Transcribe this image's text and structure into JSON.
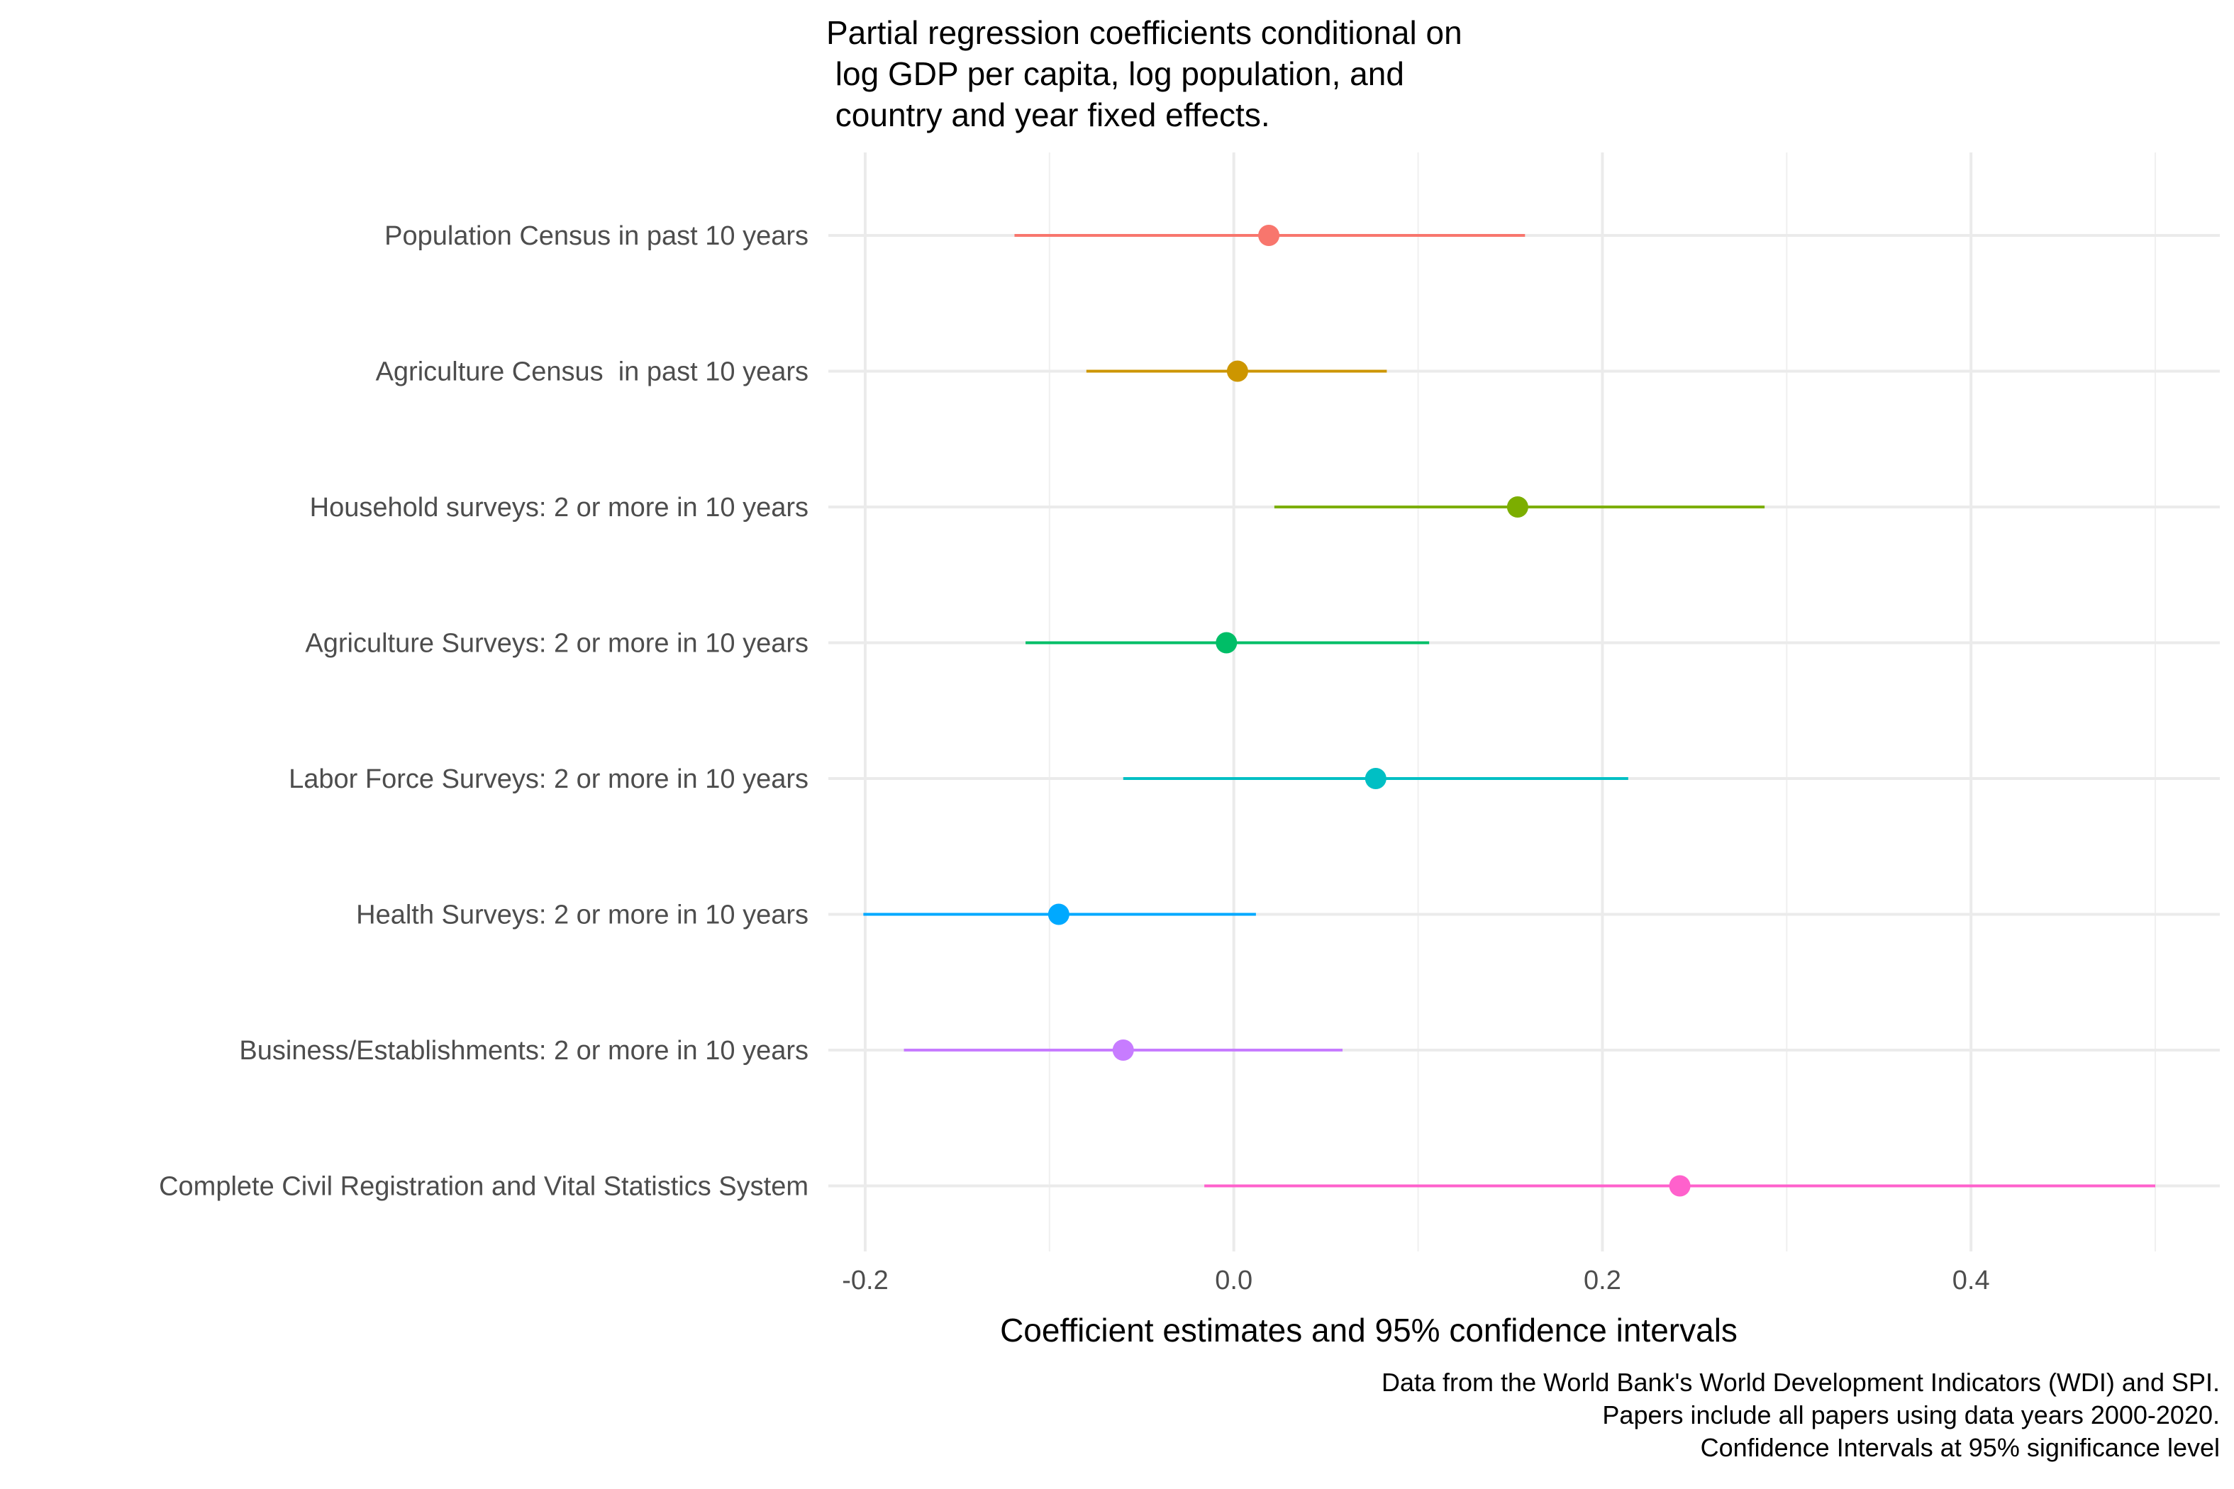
{
  "chart_data": {
    "type": "scatter",
    "subtype": "coefficient-plot",
    "title": [
      "Partial regression coefficients conditional on",
      " log GDP per capita, log population, and",
      " country and year fixed effects."
    ],
    "xlabel": "Coefficient estimates and 95% confidence intervals",
    "ylabel": "",
    "xlim": [
      -0.22,
      0.535
    ],
    "xticks": [
      -0.2,
      0.0,
      0.2,
      0.4
    ],
    "xtick_labels": [
      "-0.2",
      "0.0",
      "0.2",
      "0.4"
    ],
    "grid": true,
    "legend": "none",
    "caption": [
      "Data from the World Bank's World Development Indicators (WDI) and SPI.",
      "Papers include all papers using data years 2000-2020.",
      "Confidence Intervals at 95% significance level"
    ],
    "series": [
      {
        "label": "Population Census in past 10 years",
        "estimate": 0.019,
        "ci_low": -0.119,
        "ci_high": 0.158,
        "color": "#F8766D"
      },
      {
        "label": "Agriculture Census  in past 10 years",
        "estimate": 0.002,
        "ci_low": -0.08,
        "ci_high": 0.083,
        "color": "#CD9600"
      },
      {
        "label": "Household surveys: 2 or more in 10 years",
        "estimate": 0.154,
        "ci_low": 0.022,
        "ci_high": 0.288,
        "color": "#7CAE00"
      },
      {
        "label": "Agriculture Surveys: 2 or more in 10 years",
        "estimate": -0.004,
        "ci_low": -0.113,
        "ci_high": 0.106,
        "color": "#00BE67"
      },
      {
        "label": "Labor Force Surveys: 2 or more in 10 years",
        "estimate": 0.077,
        "ci_low": -0.06,
        "ci_high": 0.214,
        "color": "#00BFC4"
      },
      {
        "label": "Health Surveys: 2 or more in 10 years",
        "estimate": -0.095,
        "ci_low": -0.201,
        "ci_high": 0.012,
        "color": "#00A9FF"
      },
      {
        "label": "Business/Establishments: 2 or more in 10 years",
        "estimate": -0.06,
        "ci_low": -0.179,
        "ci_high": 0.059,
        "color": "#C77CFF"
      },
      {
        "label": "Complete Civil Registration and Vital Statistics System",
        "estimate": 0.242,
        "ci_low": -0.016,
        "ci_high": 0.5,
        "color": "#FF61CC"
      }
    ]
  }
}
